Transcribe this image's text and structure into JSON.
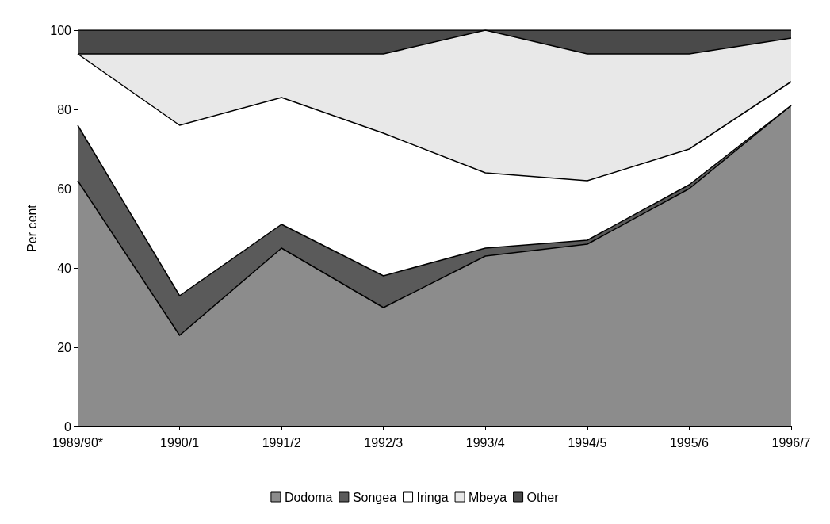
{
  "chart_data": {
    "type": "area",
    "stacked": true,
    "ylabel": "Per cent",
    "categories": [
      "1989/90*",
      "1990/1",
      "1991/2",
      "1992/3",
      "1993/4",
      "1994/5",
      "1995/6",
      "1996/7"
    ],
    "ylim": [
      0,
      100
    ],
    "yticks": [
      0,
      20,
      40,
      60,
      80,
      100
    ],
    "grid": false,
    "legend": "bottom",
    "series": [
      {
        "name": "Dodoma",
        "color": "#8c8c8c",
        "values": [
          62,
          23,
          45,
          30,
          43,
          46,
          60,
          81
        ]
      },
      {
        "name": "Songea",
        "color": "#5a5a5a",
        "values": [
          14,
          10,
          6,
          8,
          2,
          1,
          1,
          0
        ]
      },
      {
        "name": "Iringa",
        "color": "#ffffff",
        "values": [
          18,
          43,
          32,
          36,
          19,
          15,
          9,
          6
        ]
      },
      {
        "name": "Mbeya",
        "color": "#e8e8e8",
        "values": [
          0,
          18,
          11,
          20,
          36,
          32,
          24,
          11
        ]
      },
      {
        "name": "Other",
        "color": "#4a4a4a",
        "values": [
          6,
          6,
          6,
          6,
          0,
          6,
          6,
          2
        ]
      }
    ]
  }
}
